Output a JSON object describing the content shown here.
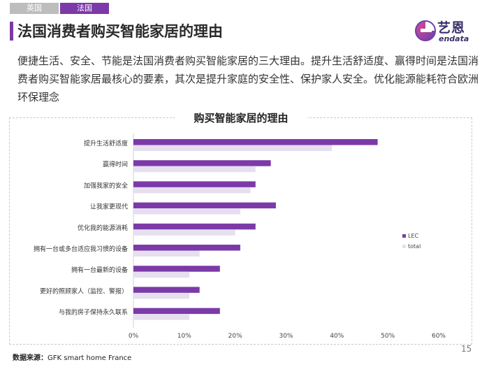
{
  "tabs": [
    "英国",
    "法国"
  ],
  "page_title": "法国消费者购买智能家居的理由",
  "logo": {
    "cn": "艺恩",
    "en": "endata"
  },
  "intro": "便捷生活、安全、节能是法国消费者购买智能家居的三大理由。提升生活舒适度、赢得时间是法国消费者购买智能家居最核心的要素，其次是提升家庭的安全性、保护家人安全。优化能源能耗符合欧洲环保理念",
  "source": {
    "label": "数据来源：",
    "text": "GFK smart home France"
  },
  "page_number": "15",
  "colors": {
    "accent": "#7b3aa8",
    "lec": "#7b3aa8",
    "total": "#e6dff0"
  },
  "chart_data": {
    "type": "bar",
    "orientation": "horizontal",
    "title": "购买智能家居的理由",
    "categories": [
      "提升生活舒适度",
      "赢得时间",
      "加强我家的安全",
      "让我家更现代",
      "优化我的能源消耗",
      "拥有一台或多台适应我习惯的设备",
      "拥有一台最新的设备",
      "更好的照顾家人（监控、警报）",
      "与我的房子保持永久联系"
    ],
    "series": [
      {
        "name": "LEC",
        "values": [
          48,
          27,
          24,
          28,
          24,
          21,
          17,
          13,
          17
        ]
      },
      {
        "name": "total",
        "values": [
          39,
          24,
          23,
          21,
          20,
          13,
          11,
          11,
          11
        ]
      }
    ],
    "xlim": [
      0,
      60
    ],
    "xticks": [
      "0%",
      "10%",
      "20%",
      "30%",
      "40%",
      "50%",
      "60%"
    ],
    "grid": false,
    "legend": "right"
  }
}
